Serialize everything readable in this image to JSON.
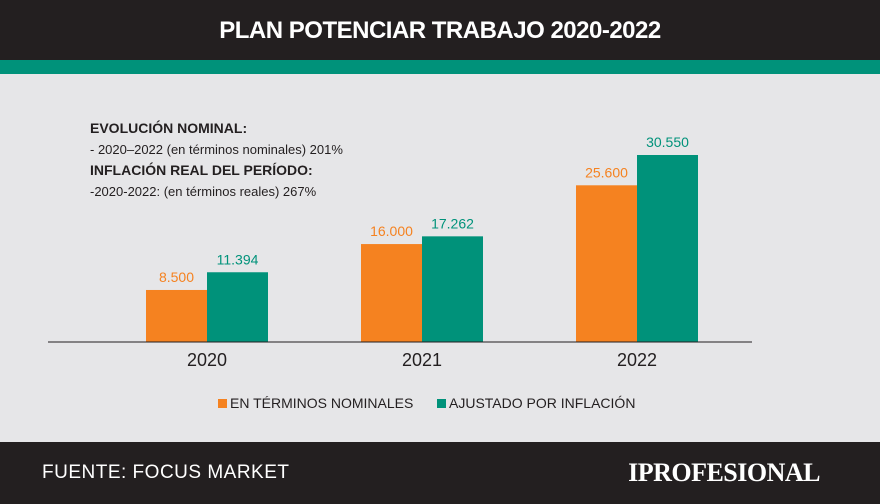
{
  "header": {
    "title": "PLAN POTENCIAR TRABAJO 2020-2022"
  },
  "notes": {
    "line1": "EVOLUCIÓN NOMINAL:",
    "line2": "- 2020–2022 (en términos nominales) 201%",
    "line3": "INFLACIÓN REAL DEL PERÍODO:",
    "line4": "-2020-2022: (en términos reales) 267%"
  },
  "colors": {
    "nominal": "#f58220",
    "adjusted": "#00927a",
    "header_bg": "#231f20",
    "panel_bg": "#e6e6e8"
  },
  "chart_data": {
    "type": "bar",
    "categories": [
      "2020",
      "2021",
      "2022"
    ],
    "series": [
      {
        "name": "EN TÉRMINOS NOMINALES",
        "values": [
          8500,
          16000,
          25600
        ],
        "labels": [
          "8.500",
          "16.000",
          "25.600"
        ],
        "color": "#f58220"
      },
      {
        "name": "AJUSTADO POR INFLACIÓN",
        "values": [
          11394,
          17262,
          30550
        ],
        "labels": [
          "11.394",
          "17.262",
          "30.550"
        ],
        "color": "#00927a"
      }
    ],
    "ylim": [
      0,
      30550
    ],
    "legend_position": "bottom"
  },
  "footer": {
    "source": "FUENTE: FOCUS MARKET",
    "brand": "IPROFESIONAL"
  }
}
